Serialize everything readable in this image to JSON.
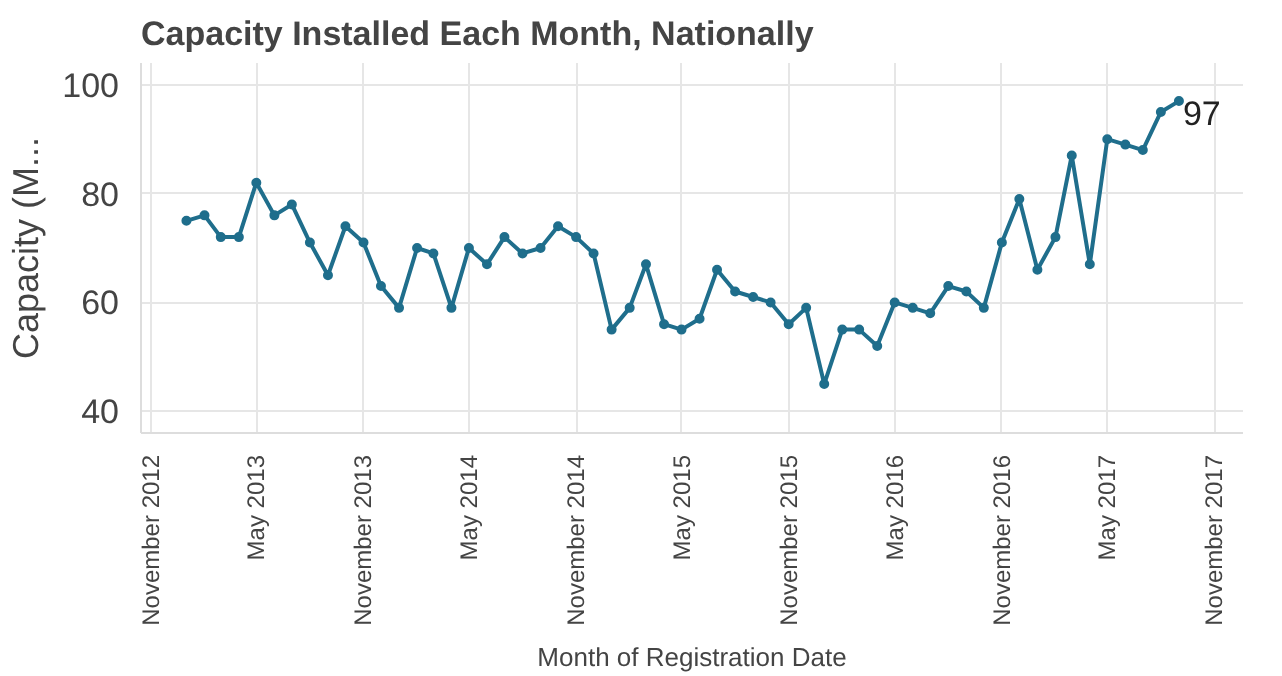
{
  "chart_data": {
    "type": "line",
    "title": "Capacity Installed Each Month, Nationally",
    "xlabel": "Month of Registration Date",
    "ylabel": "Capacity (M...",
    "x": [
      "2013-01",
      "2013-02",
      "2013-03",
      "2013-04",
      "2013-05",
      "2013-06",
      "2013-07",
      "2013-08",
      "2013-09",
      "2013-10",
      "2013-11",
      "2013-12",
      "2014-01",
      "2014-02",
      "2014-03",
      "2014-04",
      "2014-05",
      "2014-06",
      "2014-07",
      "2014-08",
      "2014-09",
      "2014-10",
      "2014-11",
      "2014-12",
      "2015-01",
      "2015-02",
      "2015-03",
      "2015-04",
      "2015-05",
      "2015-06",
      "2015-07",
      "2015-08",
      "2015-09",
      "2015-10",
      "2015-11",
      "2015-12",
      "2016-01",
      "2016-02",
      "2016-03",
      "2016-04",
      "2016-05",
      "2016-06",
      "2016-07",
      "2016-08",
      "2016-09",
      "2016-10",
      "2016-11",
      "2016-12",
      "2017-01",
      "2017-02",
      "2017-03",
      "2017-04",
      "2017-05",
      "2017-06",
      "2017-07",
      "2017-08",
      "2017-09"
    ],
    "series": [
      {
        "color": "#1f6e8c",
        "values": [
          75,
          76,
          72,
          72,
          82,
          76,
          78,
          71,
          65,
          74,
          71,
          63,
          59,
          70,
          69,
          59,
          70,
          67,
          72,
          69,
          70,
          74,
          72,
          69,
          55,
          59,
          67,
          56,
          55,
          57,
          66,
          62,
          61,
          60,
          56,
          59,
          45,
          55,
          55,
          52,
          60,
          59,
          58,
          63,
          62,
          59,
          71,
          79,
          66,
          72,
          87,
          67,
          90,
          89,
          88,
          95,
          97
        ]
      }
    ],
    "xlim": [
      "2012-10-15",
      "2017-12-20"
    ],
    "ylim": [
      36,
      104
    ],
    "xticks": [
      {
        "value": "2012-11",
        "label": "November 2012"
      },
      {
        "value": "2013-05",
        "label": "May 2013"
      },
      {
        "value": "2013-11",
        "label": "November 2013"
      },
      {
        "value": "2014-05",
        "label": "May 2014"
      },
      {
        "value": "2014-11",
        "label": "November 2014"
      },
      {
        "value": "2015-05",
        "label": "May 2015"
      },
      {
        "value": "2015-11",
        "label": "November 2015"
      },
      {
        "value": "2016-05",
        "label": "May 2016"
      },
      {
        "value": "2016-11",
        "label": "November 2016"
      },
      {
        "value": "2017-05",
        "label": "May 2017"
      },
      {
        "value": "2017-11",
        "label": "November 2017"
      }
    ],
    "yticks": [
      40,
      60,
      80,
      100
    ],
    "annotations": [
      {
        "text": "97",
        "x": "2017-09",
        "y": 97
      }
    ],
    "grid": true,
    "marker": "circle",
    "line_style": "solid"
  }
}
